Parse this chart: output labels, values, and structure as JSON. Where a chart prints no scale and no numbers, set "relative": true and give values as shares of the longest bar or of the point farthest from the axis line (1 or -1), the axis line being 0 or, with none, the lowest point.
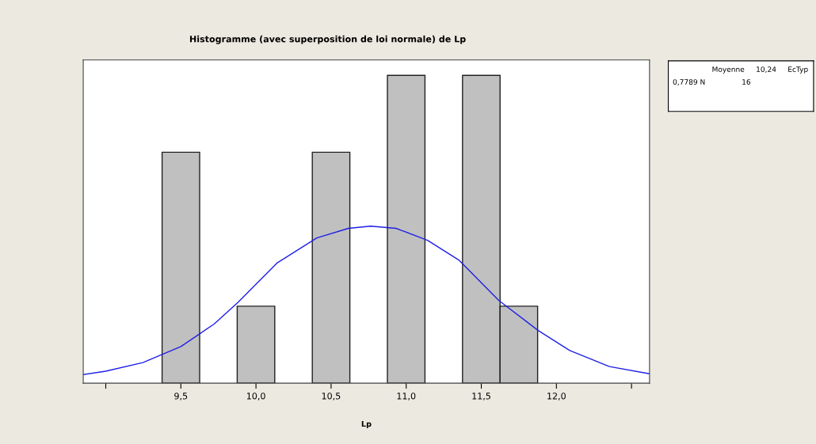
{
  "chart_data": {
    "type": "histogram",
    "title": "Histogramme (avec superposition de loi normale) de Lp",
    "xlabel": "Lp",
    "relative": true,
    "bins": [
      9.375,
      9.625,
      9.875,
      10.125,
      10.375,
      10.625,
      10.875,
      11.125,
      11.375,
      11.625,
      11.875
    ],
    "values": [
      0.75,
      0,
      0.25,
      0,
      0.75,
      0,
      1,
      0,
      1,
      0.25
    ],
    "color": "#c0c0c0",
    "series": [
      {
        "type": "line",
        "color": "#1f1fe6",
        "x": [
          8.853,
          9.0,
          9.247,
          9.5,
          9.721,
          9.879,
          10.142,
          10.405,
          10.616,
          10.763,
          10.932,
          11.142,
          11.353,
          11.616,
          11.879,
          12.089,
          12.353,
          12.616
        ],
        "values": [
          0.028,
          0.039,
          0.067,
          0.119,
          0.192,
          0.262,
          0.391,
          0.472,
          0.503,
          0.51,
          0.503,
          0.464,
          0.399,
          0.269,
          0.171,
          0.106,
          0.054,
          0.031
        ]
      }
    ],
    "xlim": [
      8.85,
      12.62
    ],
    "xticks": [
      {
        "value": 9.0,
        "label": null
      },
      {
        "value": 9.5,
        "label": "9,5"
      },
      {
        "value": 10.0,
        "label": "10,0"
      },
      {
        "value": 10.5,
        "label": "10,5"
      },
      {
        "value": 11.0,
        "label": "11,0"
      },
      {
        "value": 11.5,
        "label": "11,5"
      },
      {
        "value": 12.0,
        "label": "12,0"
      },
      {
        "value": 12.5,
        "label": null
      }
    ],
    "annotations": [
      "Moyenne     10,24     EcTyp",
      "0,7789 N                16"
    ],
    "grid": false
  }
}
